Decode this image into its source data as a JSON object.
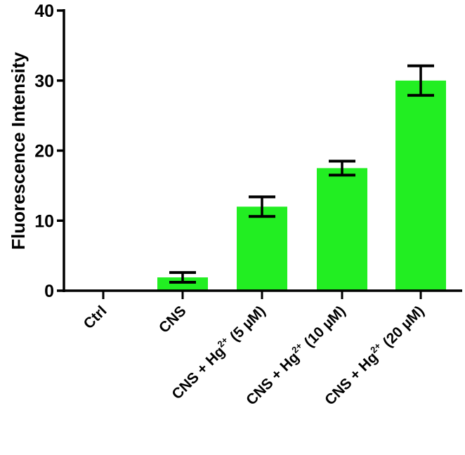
{
  "chart_data": {
    "type": "bar",
    "title": "",
    "xlabel": "",
    "ylabel": "Fluorescence Intensity",
    "ylim": [
      0,
      40
    ],
    "yticks": [
      "0",
      "10",
      "20",
      "30",
      "40"
    ],
    "categories": [
      {
        "main": "Ctrl",
        "sup": "",
        "tail": ""
      },
      {
        "main": "CNS",
        "sup": "",
        "tail": ""
      },
      {
        "main": "CNS + Hg",
        "sup": "2+",
        "tail": " (5 µM)"
      },
      {
        "main": "CNS + Hg",
        "sup": "2+",
        "tail": " (10 µM)"
      },
      {
        "main": "CNS + Hg",
        "sup": "2+",
        "tail": " (20 µM)"
      }
    ],
    "values": [
      0,
      1.9,
      12.0,
      17.5,
      30.0
    ],
    "errors": [
      0,
      0.7,
      1.4,
      1.0,
      2.1
    ],
    "bar_color": "#22ee22",
    "grid": false
  }
}
